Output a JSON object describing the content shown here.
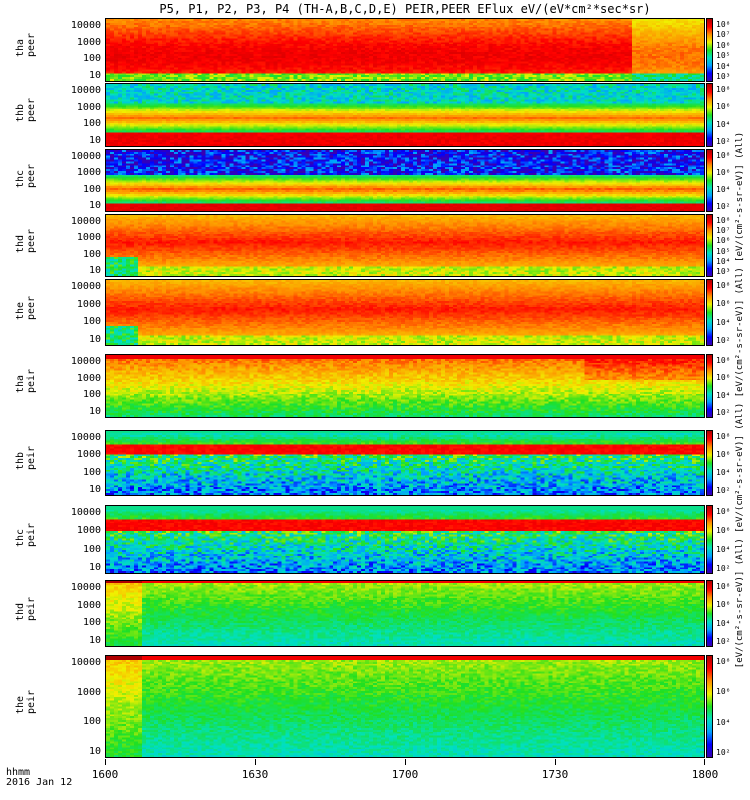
{
  "chart_data": {
    "type": "heatmap",
    "title": "P5, P1, P2, P3, P4 (TH-A,B,C,D,E) PEIR,PEER EFlux eV/(eV*cm²*sec*sr)",
    "colorbar_label": "[eV/(cm²-s-sr-eV)] (All) [eV/(cm²-s-sr-eV)] (All) [eV/(cm²-s-sr-eV)] (All) [eV/(cm²-s-sr-eV)] (All)",
    "x_axis": {
      "ticks": [
        "1600",
        "1630",
        "1700",
        "1730",
        "1800"
      ],
      "label_lines": [
        "hhmm",
        "2016 Jan 12"
      ],
      "range_minutes": [
        0,
        120
      ]
    },
    "panels": [
      {
        "id": "tha-peer",
        "label_line1": "tha",
        "label_line2": "peer",
        "yticks": [
          "10000",
          "1000",
          "100",
          "10"
        ],
        "cbar_ticks": [
          "10⁸",
          "10⁷",
          "10⁶",
          "10⁵",
          "10⁴",
          "10³"
        ],
        "pattern": "hot_fade"
      },
      {
        "id": "thb-peer",
        "label_line1": "thb",
        "label_line2": "peer",
        "yticks": [
          "10000",
          "1000",
          "100",
          "10"
        ],
        "cbar_ticks": [
          "10⁸",
          "10⁶",
          "10⁴",
          "10²"
        ],
        "pattern": "band_low"
      },
      {
        "id": "thc-peer",
        "label_line1": "thc",
        "label_line2": "peer",
        "yticks": [
          "10000",
          "1000",
          "100",
          "10"
        ],
        "cbar_ticks": [
          "10⁸",
          "10⁶",
          "10⁴",
          "10²"
        ],
        "pattern": "band_low_noisy"
      },
      {
        "id": "thd-peer",
        "label_line1": "thd",
        "label_line2": "peer",
        "yticks": [
          "10000",
          "1000",
          "100",
          "10"
        ],
        "cbar_ticks": [
          "10⁸",
          "10⁷",
          "10⁶",
          "10⁵",
          "10⁴",
          "10³"
        ],
        "pattern": "hot_wide"
      },
      {
        "id": "the-peer",
        "label_line1": "the",
        "label_line2": "peer",
        "yticks": [
          "10000",
          "1000",
          "100",
          "10"
        ],
        "cbar_ticks": [
          "10⁸",
          "10⁶",
          "10⁴",
          "10²"
        ],
        "pattern": "hot_wide"
      },
      {
        "id": "tha-peir",
        "label_line1": "tha",
        "label_line2": "peir",
        "yticks": [
          "10000",
          "1000",
          "100",
          "10"
        ],
        "cbar_ticks": [
          "10⁸",
          "10⁶",
          "10⁴",
          "10²"
        ],
        "pattern": "ion_warm"
      },
      {
        "id": "thb-peir",
        "label_line1": "thb",
        "label_line2": "peir",
        "yticks": [
          "10000",
          "1000",
          "100",
          "10"
        ],
        "cbar_ticks": [
          "10⁸",
          "10⁶",
          "10⁴",
          "10²"
        ],
        "pattern": "ion_band"
      },
      {
        "id": "thc-peir",
        "label_line1": "thc",
        "label_line2": "peir",
        "yticks": [
          "10000",
          "1000",
          "100",
          "10"
        ],
        "cbar_ticks": [
          "10⁸",
          "10⁶",
          "10⁴",
          "10²"
        ],
        "pattern": "ion_band"
      },
      {
        "id": "thd-peir",
        "label_line1": "thd",
        "label_line2": "peir",
        "yticks": [
          "10000",
          "1000",
          "100",
          "10"
        ],
        "cbar_ticks": [
          "10⁸",
          "10⁶",
          "10⁴",
          "10²"
        ],
        "pattern": "ion_cool"
      },
      {
        "id": "the-peir",
        "label_line1": "the",
        "label_line2": "peir",
        "yticks": [
          "10000",
          "1000",
          "100",
          "10"
        ],
        "cbar_ticks": [
          "10⁸",
          "10⁶",
          "10⁴",
          "10²"
        ],
        "pattern": "ion_cool"
      }
    ]
  }
}
